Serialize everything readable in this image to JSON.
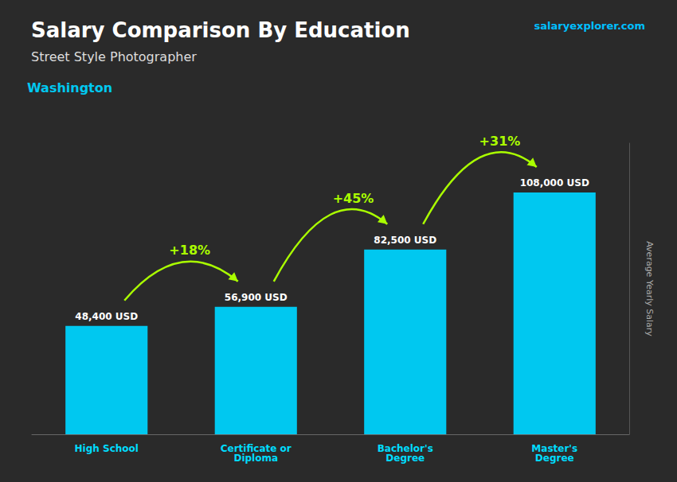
{
  "chart_data": {
    "type": "bar",
    "title": "Salary Comparison By Education",
    "subtitle": "Street Style Photographer",
    "annotations": [
      "Washington",
      "salaryexplorer.com"
    ],
    "ylabel": "Average Yearly Salary",
    "categories": [
      "High School",
      "Certificate or\nDiploma",
      "Bachelor's\nDegree",
      "Master's\nDegree"
    ],
    "values": [
      48400,
      56900,
      82500,
      108000
    ],
    "value_labels": [
      "48,400 USD",
      "56,900 USD",
      "82,500 USD",
      "108,000 USD"
    ],
    "change_labels": [
      "+18%",
      "+45%",
      "+31%"
    ],
    "color": "#00c8f0",
    "ylim": [
      0,
      130000
    ],
    "grid": false,
    "data_labels": true,
    "tick_labels": "x"
  }
}
